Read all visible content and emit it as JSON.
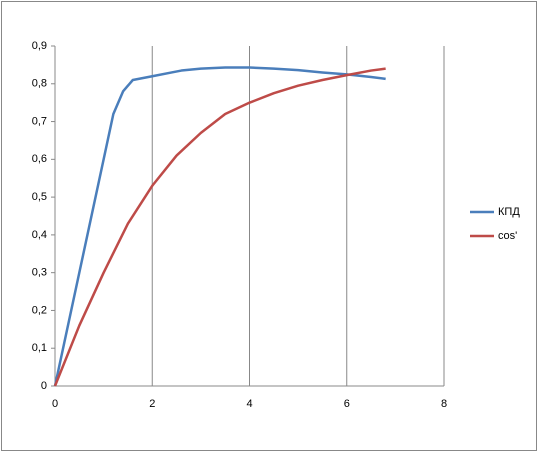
{
  "chart_data": {
    "type": "line",
    "series": [
      {
        "name": "КПД",
        "color": "#4a7ebb",
        "x": [
          0,
          0.5,
          1,
          1.2,
          1.4,
          1.6,
          2,
          2.4,
          2.6,
          3,
          3.5,
          4,
          4.5,
          5,
          5.5,
          6,
          6.5,
          6.8
        ],
        "values": [
          0,
          0.3,
          0.6,
          0.72,
          0.78,
          0.81,
          0.82,
          0.83,
          0.835,
          0.84,
          0.843,
          0.843,
          0.84,
          0.836,
          0.83,
          0.825,
          0.818,
          0.813
        ]
      },
      {
        "name": "cos'",
        "color": "#be4b48",
        "x": [
          0,
          0.5,
          1,
          1.5,
          2,
          2.5,
          3,
          3.5,
          4,
          4.5,
          5,
          5.5,
          6,
          6.5,
          6.8
        ],
        "values": [
          0,
          0.16,
          0.3,
          0.43,
          0.53,
          0.61,
          0.67,
          0.72,
          0.75,
          0.775,
          0.795,
          0.81,
          0.823,
          0.835,
          0.84
        ]
      }
    ],
    "xlim": [
      0,
      8
    ],
    "xticks": [
      0,
      2,
      4,
      6,
      8
    ],
    "ylim": [
      0,
      0.9
    ],
    "yticks": [
      0,
      {
        "value": 0.1,
        "label": "0,1"
      },
      {
        "value": 0.2,
        "label": "0,2"
      },
      {
        "value": 0.3,
        "label": "0,3"
      },
      {
        "value": 0.4,
        "label": "0,4"
      },
      {
        "value": 0.5,
        "label": "0,5"
      },
      {
        "value": 0.6,
        "label": "0,6"
      },
      {
        "value": 0.7,
        "label": "0,7"
      },
      {
        "value": 0.8,
        "label": "0,8"
      },
      {
        "value": 0.9,
        "label": "0,9"
      }
    ],
    "grid": true,
    "legend": "right"
  }
}
